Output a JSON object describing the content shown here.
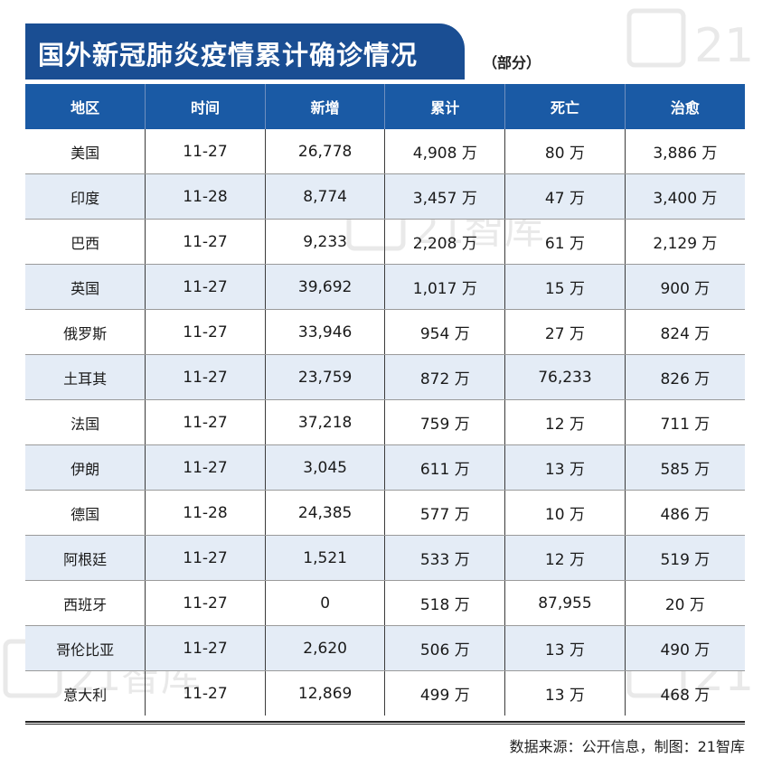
{
  "title": "国外新冠肺炎疫情累计确诊情况",
  "subtitle": "（部分）",
  "columns": [
    "地区",
    "时间",
    "新增",
    "累计",
    "死亡",
    "治愈"
  ],
  "rows": [
    [
      "美国",
      "11-27",
      "26,778",
      "4,908 万",
      "80 万",
      "3,886 万"
    ],
    [
      "印度",
      "11-28",
      "8,774",
      "3,457 万",
      "47 万",
      "3,400 万"
    ],
    [
      "巴西",
      "11-27",
      "9,233",
      "2,208 万",
      "61 万",
      "2,129 万"
    ],
    [
      "英国",
      "11-27",
      "39,692",
      "1,017 万",
      "15 万",
      "900 万"
    ],
    [
      "俄罗斯",
      "11-27",
      "33,946",
      "954 万",
      "27 万",
      "824 万"
    ],
    [
      "土耳其",
      "11-27",
      "23,759",
      "872 万",
      "76,233",
      "826 万"
    ],
    [
      "法国",
      "11-27",
      "37,218",
      "759 万",
      "12 万",
      "711 万"
    ],
    [
      "伊朗",
      "11-27",
      "3,045",
      "611 万",
      "13 万",
      "585 万"
    ],
    [
      "德国",
      "11-28",
      "24,385",
      "577 万",
      "10 万",
      "486 万"
    ],
    [
      "阿根廷",
      "11-27",
      "1,521",
      "533 万",
      "12 万",
      "519 万"
    ],
    [
      "西班牙",
      "11-27",
      "0",
      "518 万",
      "87,955",
      "20 万"
    ],
    [
      "哥伦比亚",
      "11-27",
      "2,620",
      "506 万",
      "13 万",
      "490 万"
    ],
    [
      "意大利",
      "11-27",
      "12,869",
      "499 万",
      "13 万",
      "468 万"
    ]
  ],
  "source": "数据来源：公开信息，制图：21智库",
  "watermark": "21智库",
  "colors": {
    "header": "#1a5aa5",
    "title_bg": "#1a4e93",
    "alt_row": "#e4ecf6"
  }
}
